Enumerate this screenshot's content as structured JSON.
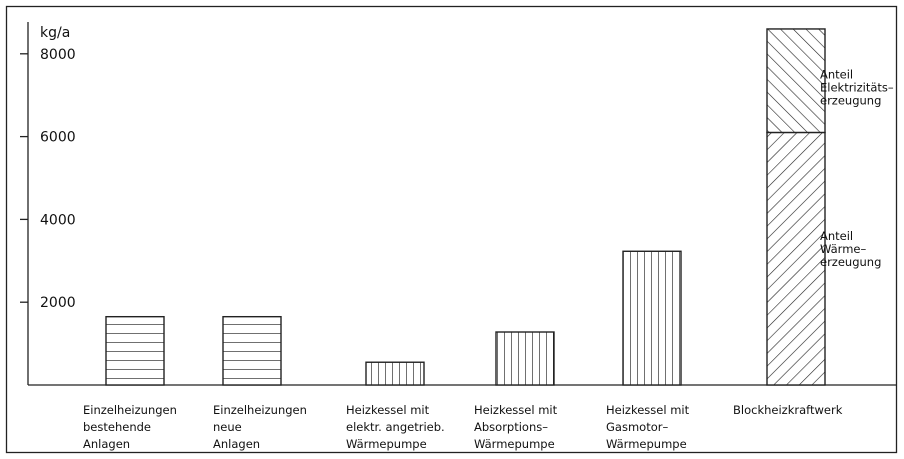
{
  "chart_data": {
    "type": "bar",
    "title": "",
    "xlabel": "",
    "ylabel": "kg/a",
    "ylim": [
      0,
      8700
    ],
    "yticks": [
      2000,
      4000,
      6000,
      8000
    ],
    "tick_labels": [
      "2000",
      "4000",
      "6000",
      "8000"
    ],
    "grid": false,
    "categories": [
      [
        "Einzelheizungen",
        "bestehende",
        "Anlagen"
      ],
      [
        "Einzelheizungen",
        "neue",
        "Anlagen"
      ],
      [
        "Heizkessel mit",
        "elektr. angetrieb.",
        "Wärmepumpe"
      ],
      [
        "Heizkessel mit",
        "Absorptions–",
        "Wärmepumpe"
      ],
      [
        "Heizkessel mit",
        "Gasmotor–",
        "Wärmepumpe"
      ],
      [
        "Blockheizkraftwerk"
      ]
    ],
    "series": [
      {
        "name": "Anteil Wärmeerzeugung",
        "values": [
          1650,
          1650,
          550,
          1280,
          3230,
          6100
        ]
      },
      {
        "name": "Anteil Elektrizitätserzeugung",
        "values": [
          0,
          0,
          0,
          0,
          0,
          2500
        ]
      }
    ],
    "hatch": [
      "horizontal",
      "horizontal",
      "vertical",
      "vertical",
      "vertical",
      "diagonal"
    ],
    "annotations": [
      {
        "lines": [
          "Anteil",
          "Elektrizitäts–",
          "erzeugung"
        ],
        "y": 7400
      },
      {
        "lines": [
          "Anteil",
          "Wärme–",
          "erzeugung"
        ],
        "y": 3500
      }
    ]
  }
}
